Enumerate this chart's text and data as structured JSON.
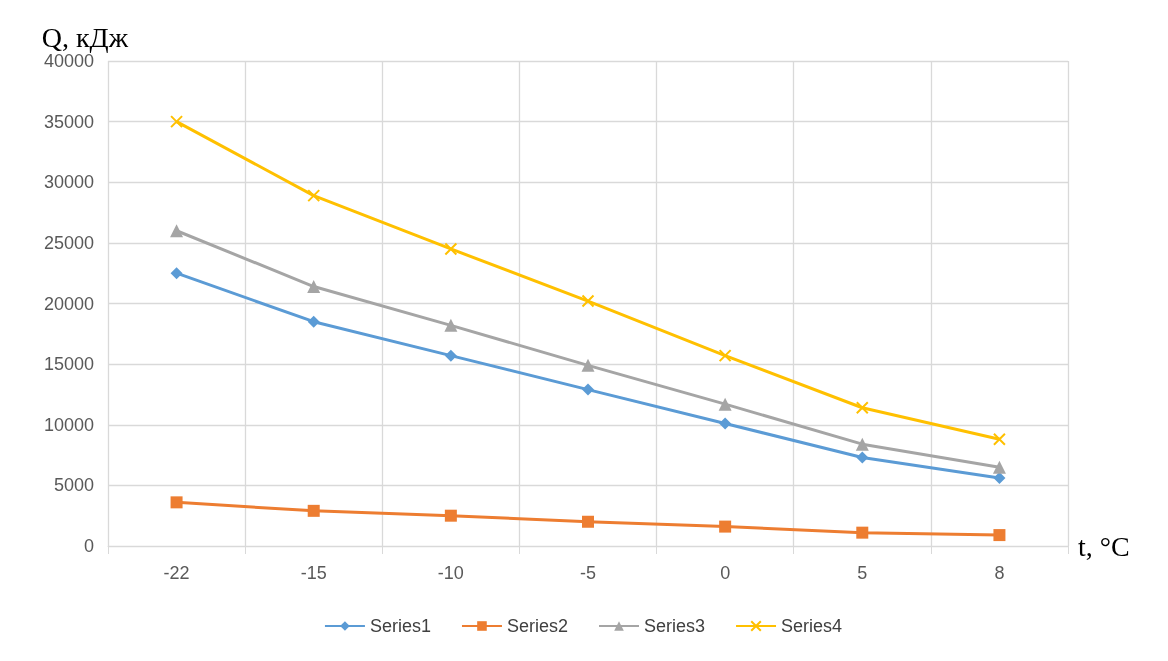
{
  "chart_data": {
    "type": "line",
    "xlabel": "t, °C",
    "ylabel": "Q, кДж",
    "categories": [
      "-22",
      "-15",
      "-10",
      "-5",
      "0",
      "5",
      "8"
    ],
    "series": [
      {
        "name": "Series1",
        "color": "#5b9bd5",
        "marker": "diamond",
        "values": [
          22500,
          18500,
          15700,
          12900,
          10100,
          7300,
          5600
        ]
      },
      {
        "name": "Series2",
        "color": "#ed7d31",
        "marker": "square",
        "values": [
          3600,
          2900,
          2500,
          2000,
          1600,
          1100,
          900
        ]
      },
      {
        "name": "Series3",
        "color": "#a5a5a5",
        "marker": "triangle",
        "values": [
          26000,
          21400,
          18200,
          14900,
          11700,
          8400,
          6500
        ]
      },
      {
        "name": "Series4",
        "color": "#ffc000",
        "marker": "cross",
        "values": [
          35000,
          28900,
          24500,
          20200,
          15700,
          11400,
          8800
        ]
      }
    ],
    "ylim": [
      0,
      40000
    ],
    "yticks": [
      0,
      5000,
      10000,
      15000,
      20000,
      25000,
      30000,
      35000,
      40000
    ],
    "grid": true,
    "legend": "bottom",
    "line_style": "solid"
  }
}
